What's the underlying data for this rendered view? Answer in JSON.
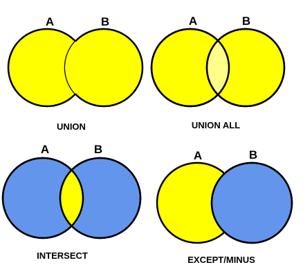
{
  "colors": {
    "yellow": "#FFFF00",
    "blue": "#6495ED",
    "highlight": "#FFFF88",
    "stroke": "#000000"
  },
  "panels": [
    {
      "operation": "UNION",
      "set_a": "A",
      "set_b": "B",
      "a_fill": "yellow",
      "b_fill": "yellow",
      "overlap_fill": "yellow",
      "draw_a_outline": false,
      "draw_b_outline": false
    },
    {
      "operation": "UNION ALL",
      "set_a": "A",
      "set_b": "B",
      "a_fill": "yellow",
      "b_fill": "yellow",
      "overlap_fill": "highlight",
      "draw_a_outline": true,
      "draw_b_outline": true
    },
    {
      "operation": "INTERSECT",
      "set_a": "A",
      "set_b": "B",
      "a_fill": "blue",
      "b_fill": "blue",
      "overlap_fill": "yellow",
      "draw_a_outline": true,
      "draw_b_outline": true
    },
    {
      "operation": "EXCEPT/MINUS",
      "set_a": "A",
      "set_b": "B",
      "a_fill": "yellow",
      "b_fill": "blue",
      "overlap_fill": "blue",
      "draw_a_outline": false,
      "draw_b_outline": true
    }
  ]
}
